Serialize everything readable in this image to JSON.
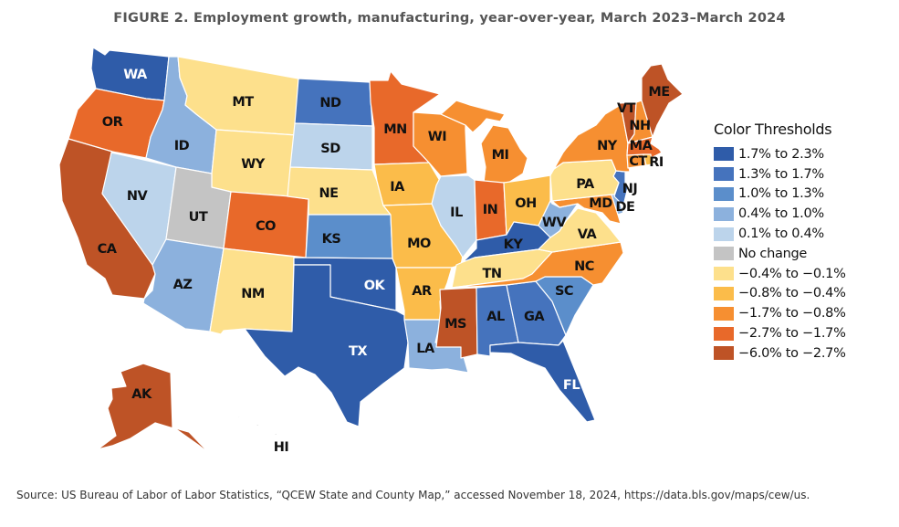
{
  "title": "FIGURE 2. Employment growth, manufacturing, year-over-year, March 2023–March 2024",
  "legend": {
    "title": "Color Thresholds",
    "items": [
      {
        "label": "1.7% to 2.3%",
        "color": "#2f5ca9"
      },
      {
        "label": "1.3% to 1.7%",
        "color": "#4573bd"
      },
      {
        "label": "1.0% to 1.3%",
        "color": "#5b8ecb"
      },
      {
        "label": "0.4% to 1.0%",
        "color": "#8cb1dd"
      },
      {
        "label": "0.1% to 0.4%",
        "color": "#bcd4eb"
      },
      {
        "label": "No change",
        "color": "#c4c4c4"
      },
      {
        "label": "−0.4% to −0.1%",
        "color": "#fde08c"
      },
      {
        "label": "−0.8% to −0.4%",
        "color": "#fbbc4a"
      },
      {
        "label": "−1.7% to −0.8%",
        "color": "#f68f31"
      },
      {
        "label": "−2.7% to −1.7%",
        "color": "#e8692a"
      },
      {
        "label": "−6.0% to −2.7%",
        "color": "#be5326"
      }
    ]
  },
  "states": {
    "WA": "1.7% to 2.3%",
    "OR": "−2.7% to −1.7%",
    "CA": "−6.0% to −2.7%",
    "NV": "0.1% to 0.4%",
    "ID": "0.4% to 1.0%",
    "MT": "−0.4% to −0.1%",
    "WY": "−0.4% to −0.1%",
    "UT": "No change",
    "AZ": "0.4% to 1.0%",
    "CO": "−2.7% to −1.7%",
    "NM": "−0.4% to −0.1%",
    "ND": "1.3% to 1.7%",
    "SD": "0.1% to 0.4%",
    "NE": "−0.4% to −0.1%",
    "KS": "1.0% to 1.3%",
    "OK": "1.7% to 2.3%",
    "TX": "1.7% to 2.3%",
    "MN": "−2.7% to −1.7%",
    "IA": "−0.8% to −0.4%",
    "MO": "−0.8% to −0.4%",
    "AR": "−0.8% to −0.4%",
    "LA": "0.4% to 1.0%",
    "WI": "−1.7% to −0.8%",
    "IL": "0.1% to 0.4%",
    "MI": "−1.7% to −0.8%",
    "IN": "−2.7% to −1.7%",
    "OH": "−0.8% to −0.4%",
    "KY": "1.7% to 2.3%",
    "TN": "−0.4% to −0.1%",
    "MS": "−6.0% to −2.7%",
    "AL": "1.3% to 1.7%",
    "GA": "1.3% to 1.7%",
    "FL": "1.7% to 2.3%",
    "SC": "1.0% to 1.3%",
    "NC": "−1.7% to −0.8%",
    "VA": "−0.4% to −0.1%",
    "WV": "0.4% to 1.0%",
    "PA": "−0.4% to −0.1%",
    "NY": "−1.7% to −0.8%",
    "VT": "−6.0% to −2.7%",
    "NH": "−1.7% to −0.8%",
    "ME": "−6.0% to −2.7%",
    "MA": "−2.7% to −1.7%",
    "CT": "−1.7% to −0.8%",
    "RI": "−0.8% to −0.4%",
    "NJ": "1.3% to 1.7%",
    "DE": "0.4% to 1.0%",
    "MD": "−1.7% to −0.8%",
    "AK": "−6.0% to −2.7%",
    "HI": ""
  },
  "source": "Source: US Bureau of Labor of Labor Statistics, “QCEW State and County Map,” accessed November 18, 2024, https://data.bls.gov/maps/cew/us."
}
